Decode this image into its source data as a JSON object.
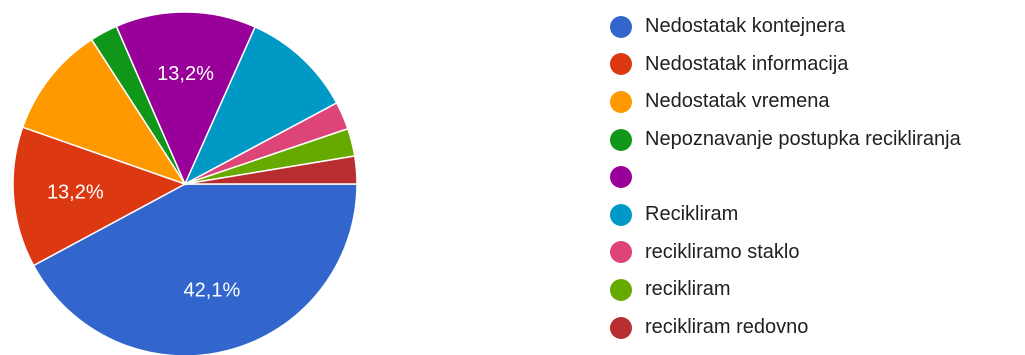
{
  "chart_data": {
    "type": "pie",
    "categories": [
      "Nedostatak kontejnera",
      "Nedostatak informacija",
      "Nedostatak vremena",
      "Nepoznavanje postupka recikliranja",
      "",
      "Recikliram",
      "recikliramo staklo",
      "recikliram",
      "recikliram redovno"
    ],
    "values": [
      42.1,
      13.2,
      10.5,
      2.6,
      13.2,
      10.5,
      2.6,
      2.6,
      2.6
    ],
    "data_labels": [
      "42,1%",
      "13,2%",
      "",
      "",
      "13,2%",
      "",
      "",
      "",
      ""
    ],
    "colors": [
      "#3366cc",
      "#dc3912",
      "#ff9900",
      "#109618",
      "#990099",
      "#0099c6",
      "#dd4477",
      "#66aa00",
      "#b82e2e"
    ],
    "start_angle_deg": 90,
    "direction": "clockwise",
    "legend_position": "right"
  }
}
